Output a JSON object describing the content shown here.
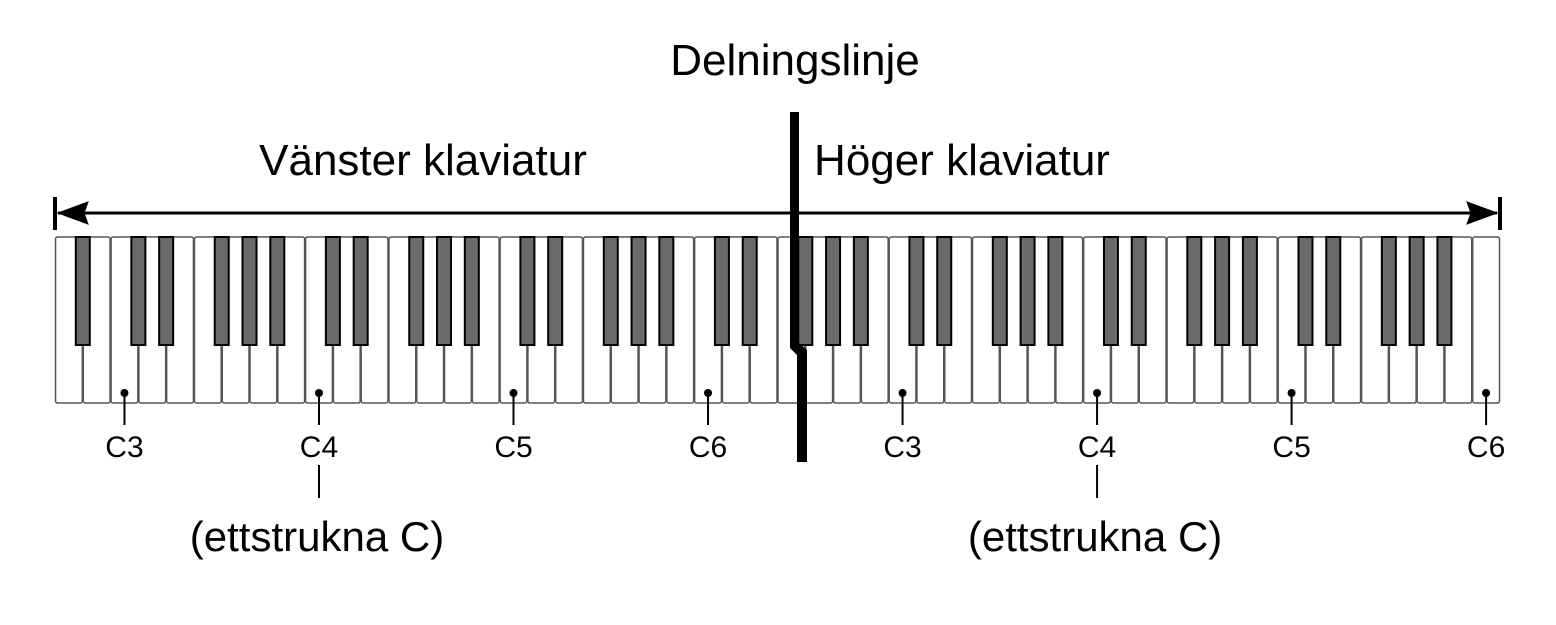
{
  "title": "Delningslinje",
  "left": {
    "label": "Vänster klaviatur",
    "notes": [
      "C3",
      "C4",
      "C5",
      "C6"
    ],
    "annotation": "(ettstrukna C)"
  },
  "right": {
    "label": "Höger klaviatur",
    "notes": [
      "C3",
      "C4",
      "C5",
      "C6"
    ],
    "annotation": "(ettstrukna C)"
  }
}
